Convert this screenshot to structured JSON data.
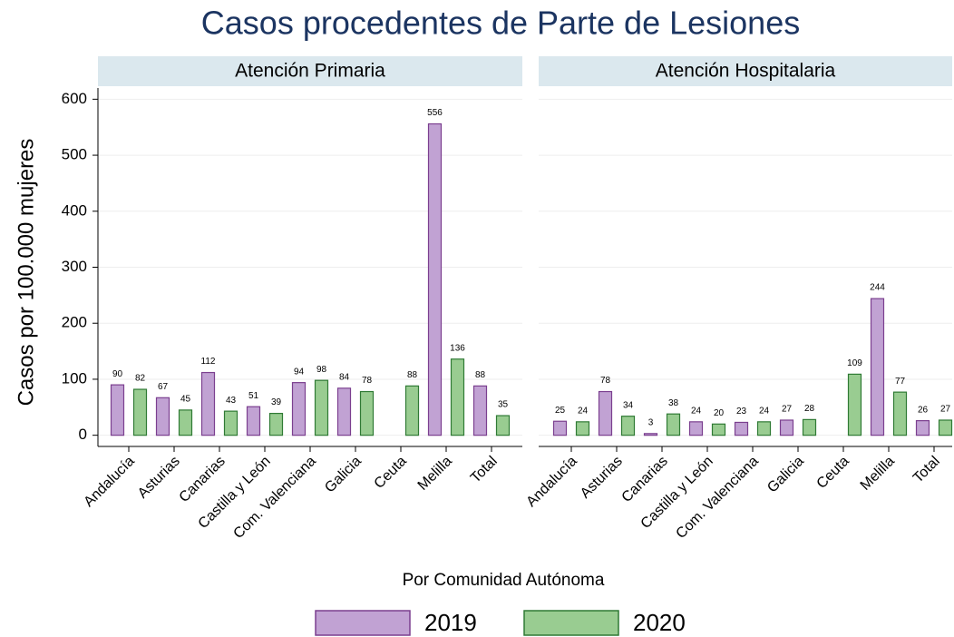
{
  "chart_data": {
    "type": "bar",
    "title": "Casos procedentes de Parte de Lesiones",
    "y_label": "Casos por 100.000 mujeres",
    "x_label": "Por Comunidad Autónoma",
    "categories": [
      "Andalucía",
      "Asturias",
      "Canarias",
      "Castilla y León",
      "Com. Valenciana",
      "Galicia",
      "Ceuta",
      "Melilla",
      "Total"
    ],
    "series": [
      {
        "name": "2019",
        "color": "#c1a2d3",
        "stroke": "#7b3f8f"
      },
      {
        "name": "2020",
        "color": "#99cc91",
        "stroke": "#2f7a34"
      }
    ],
    "panels": [
      {
        "title": "Atención Primaria",
        "values": [
          [
            90,
            67,
            112,
            51,
            94,
            84,
            null,
            556,
            88
          ],
          [
            82,
            45,
            43,
            39,
            98,
            78,
            88,
            136,
            35
          ]
        ]
      },
      {
        "title": "Atención Hospitalaria",
        "values": [
          [
            25,
            78,
            3,
            24,
            23,
            27,
            null,
            244,
            26
          ],
          [
            24,
            34,
            38,
            20,
            24,
            28,
            109,
            77,
            27
          ]
        ]
      }
    ],
    "ylim": [
      -20,
      620
    ],
    "yticks": [
      0,
      100,
      200,
      300,
      400,
      500,
      600
    ],
    "grid": true
  }
}
